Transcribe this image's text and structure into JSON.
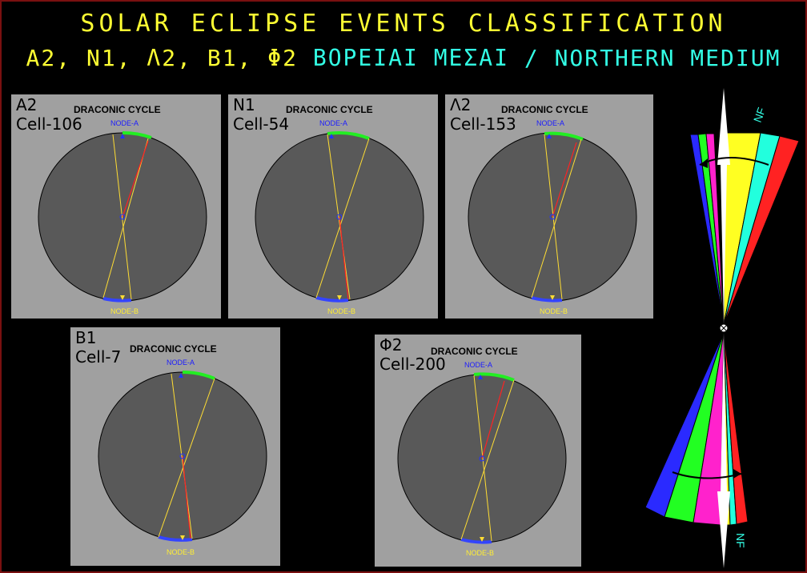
{
  "title_line1": "SOLAR ECLIPSE EVENTS CLASSIFICATION",
  "title_line2_codes": "A2, N1, Λ2, B1, Φ2",
  "title_line2_greek": "ΒΟΡΕΙΑΙ ΜΕΣΑΙ",
  "title_line2_english": "/ NORTHERN MEDIUM",
  "panels": [
    {
      "code": "A2",
      "cell": "Cell-106",
      "title": "DRACONIC CYCLE",
      "node_a": "NODE-A",
      "node_b": "NODE-B"
    },
    {
      "code": "N1",
      "cell": "Cell-54",
      "title": "DRACONIC CYCLE",
      "node_a": "NODE-A",
      "node_b": "NODE-B"
    },
    {
      "code": "Λ2",
      "cell": "Cell-153",
      "title": "DRACONIC CYCLE",
      "node_a": "NODE-A",
      "node_b": "NODE-B"
    },
    {
      "code": "B1",
      "cell": "Cell-7",
      "title": "DRACONIC CYCLE",
      "node_a": "NODE-A",
      "node_b": "NODE-B"
    },
    {
      "code": "Φ2",
      "cell": "Cell-200",
      "title": "DRACONIC CYCLE",
      "node_a": "NODE-A",
      "node_b": "NODE-B"
    }
  ],
  "fan": {
    "label_top": "NF",
    "label_bottom": "NF",
    "colors": {
      "blue": "#2a2aff",
      "green": "#22ff22",
      "magenta": "#ff22cc",
      "yellow": "#ffff22",
      "cyan": "#22ffdd",
      "red": "#ff2222"
    }
  },
  "colors": {
    "title_yellow": "#ffff33",
    "title_cyan": "#33ffe6",
    "panel_bg": "#a0a0a0",
    "disk": "#595959"
  }
}
